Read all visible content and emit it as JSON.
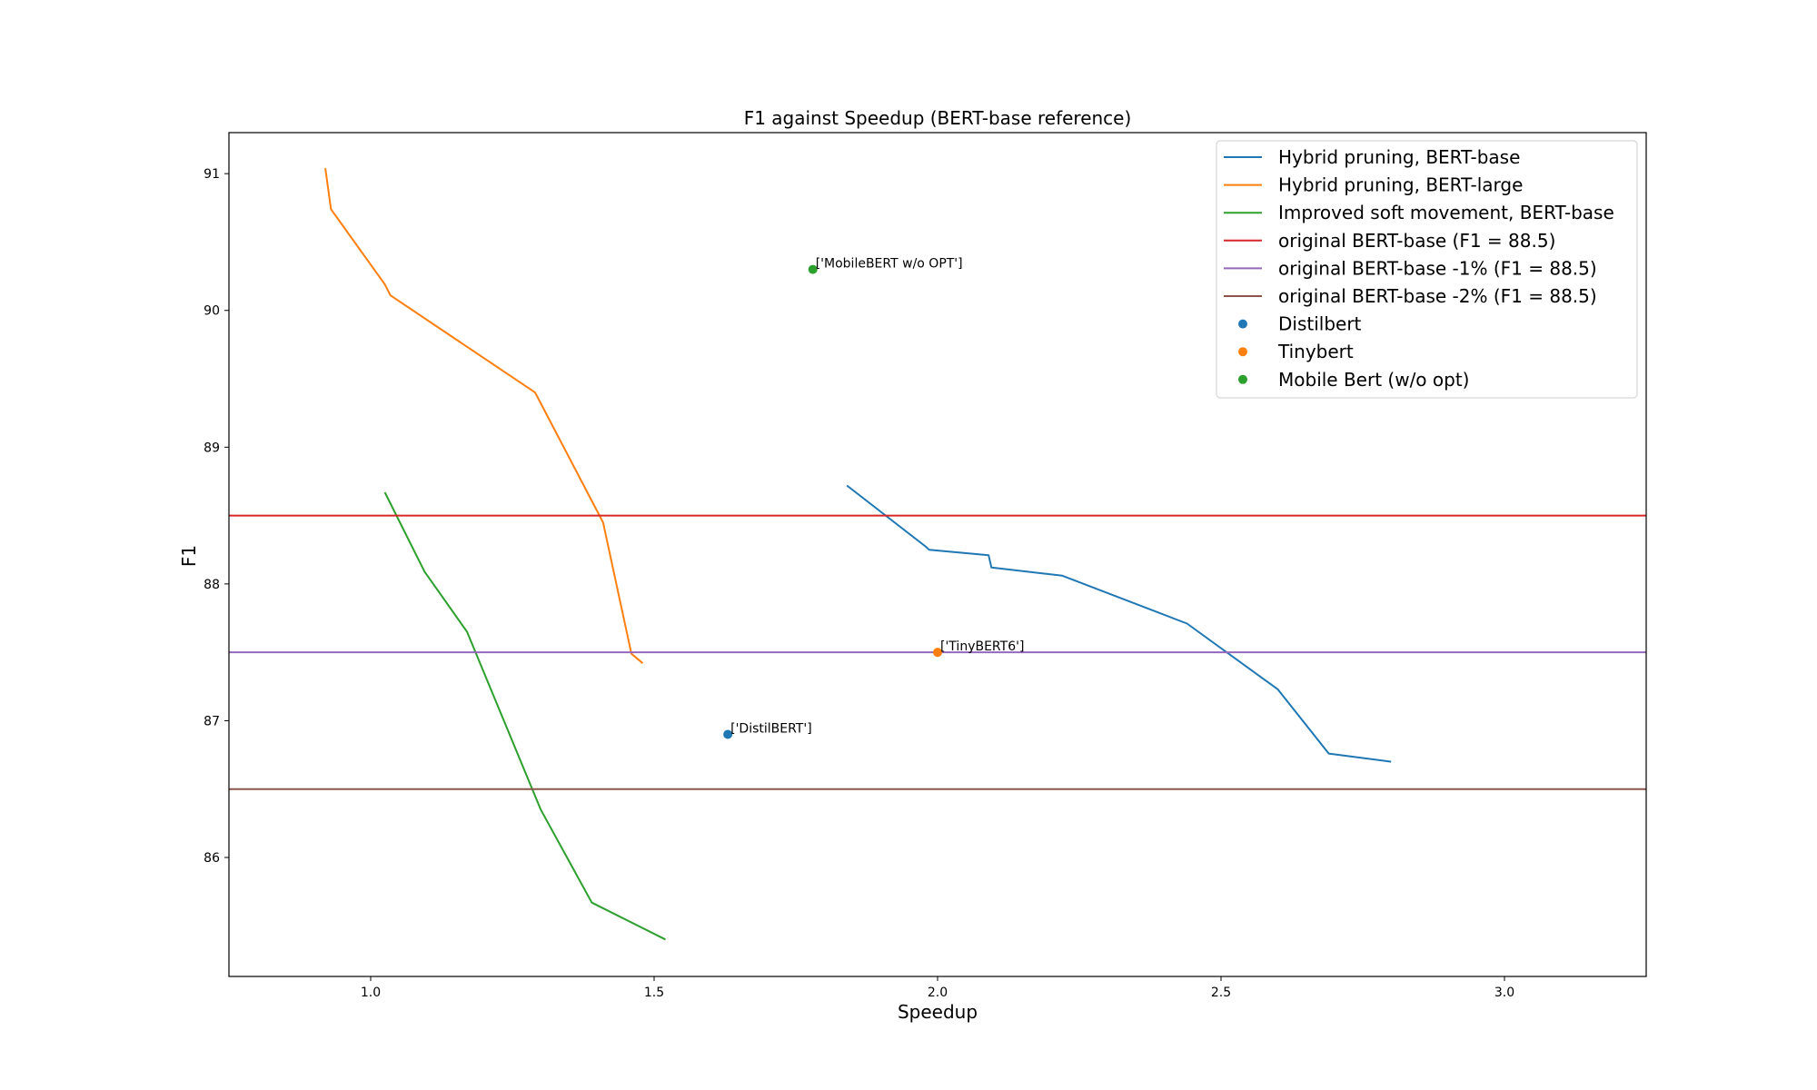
{
  "chart_data": {
    "type": "line",
    "title": "F1 against Speedup (BERT-base reference)",
    "xlabel": "Speedup",
    "ylabel": "F1",
    "xlim": [
      0.75,
      3.25
    ],
    "ylim": [
      85.13,
      91.3
    ],
    "xticks": [
      "1.0",
      "1.5",
      "2.0",
      "2.5",
      "3.0"
    ],
    "yticks": [
      "86",
      "87",
      "88",
      "89",
      "90",
      "91"
    ],
    "grid": false,
    "legend_position": "top-right",
    "series": [
      {
        "name": "Hybrid pruning, BERT-base",
        "color": "#1f77b4",
        "kind": "line",
        "x": [
          1.84,
          1.98,
          1.985,
          2.09,
          2.095,
          2.22,
          2.44,
          2.6,
          2.69,
          2.8
        ],
        "y": [
          88.72,
          88.27,
          88.25,
          88.21,
          88.12,
          88.06,
          87.71,
          87.23,
          86.76,
          86.7
        ]
      },
      {
        "name": "Hybrid pruning, BERT-large",
        "color": "#ff7f0e",
        "kind": "line",
        "x": [
          0.92,
          0.93,
          1.025,
          1.035,
          1.29,
          1.41,
          1.46,
          1.48
        ],
        "y": [
          91.04,
          90.74,
          90.19,
          90.11,
          89.4,
          88.45,
          87.49,
          87.42
        ]
      },
      {
        "name": "Improved soft movement, BERT-base",
        "color": "#2ca02c",
        "kind": "line",
        "x": [
          1.025,
          1.095,
          1.17,
          1.3,
          1.39,
          1.52
        ],
        "y": [
          88.67,
          88.09,
          87.65,
          86.35,
          85.67,
          85.4
        ]
      },
      {
        "name": "original BERT-base (F1 = 88.5)",
        "color": "#d62728",
        "kind": "hline",
        "y": 88.5
      },
      {
        "name": "original BERT-base -1% (F1 = 88.5)",
        "color": "#9467bd",
        "kind": "hline",
        "y": 87.5
      },
      {
        "name": "original BERT-base -2% (F1 = 88.5)",
        "color": "#8c564b",
        "kind": "hline",
        "y": 86.5
      },
      {
        "name": "Distilbert",
        "color": "#1f77b4",
        "kind": "point",
        "x": 1.63,
        "y": 86.9,
        "annotation": "['DistilBERT']"
      },
      {
        "name": "Tinybert",
        "color": "#ff7f0e",
        "kind": "point",
        "x": 2.0,
        "y": 87.5,
        "annotation": "['TinyBERT6']"
      },
      {
        "name": "Mobile Bert (w/o opt)",
        "color": "#2ca02c",
        "kind": "point",
        "x": 1.78,
        "y": 90.3,
        "annotation": "['MobileBERT w/o OPT']"
      }
    ]
  }
}
